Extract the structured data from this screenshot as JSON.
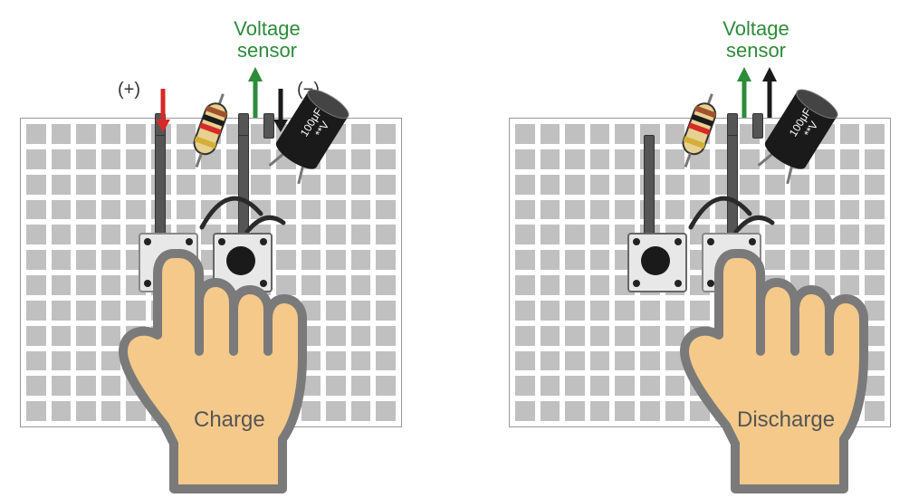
{
  "left": {
    "voltage_label": "Voltage\nsensor",
    "plus_label": "(+)",
    "minus_label": "(−)",
    "cap_label_top": "100μF",
    "cap_label_bot": "**V",
    "hand_label": "Charge",
    "colors": {
      "red_arrow": "#d62a28",
      "green_arrow": "#2e8b3a",
      "black_arrow": "#1a1a1a",
      "hand_outline": "#7a7a7a",
      "hand_fill": "#f4c98a"
    }
  },
  "right": {
    "voltage_label": "Voltage\nsensor",
    "cap_label_top": "100μF",
    "cap_label_bot": "**V",
    "hand_label": "Discharge",
    "colors": {
      "green_arrow": "#2e8b3a",
      "black_arrow": "#1a1a1a",
      "hand_outline": "#7a7a7a",
      "hand_fill": "#f4c98a"
    }
  },
  "breadboard": {
    "cols": 15,
    "rows": 12,
    "hole_color": "#c0c0c0",
    "border_color": "#999999",
    "bg": "#ffffff"
  },
  "resistor_bands": [
    "#a0522d",
    "#1a1a1a",
    "#d62a28",
    "#d4af37"
  ]
}
